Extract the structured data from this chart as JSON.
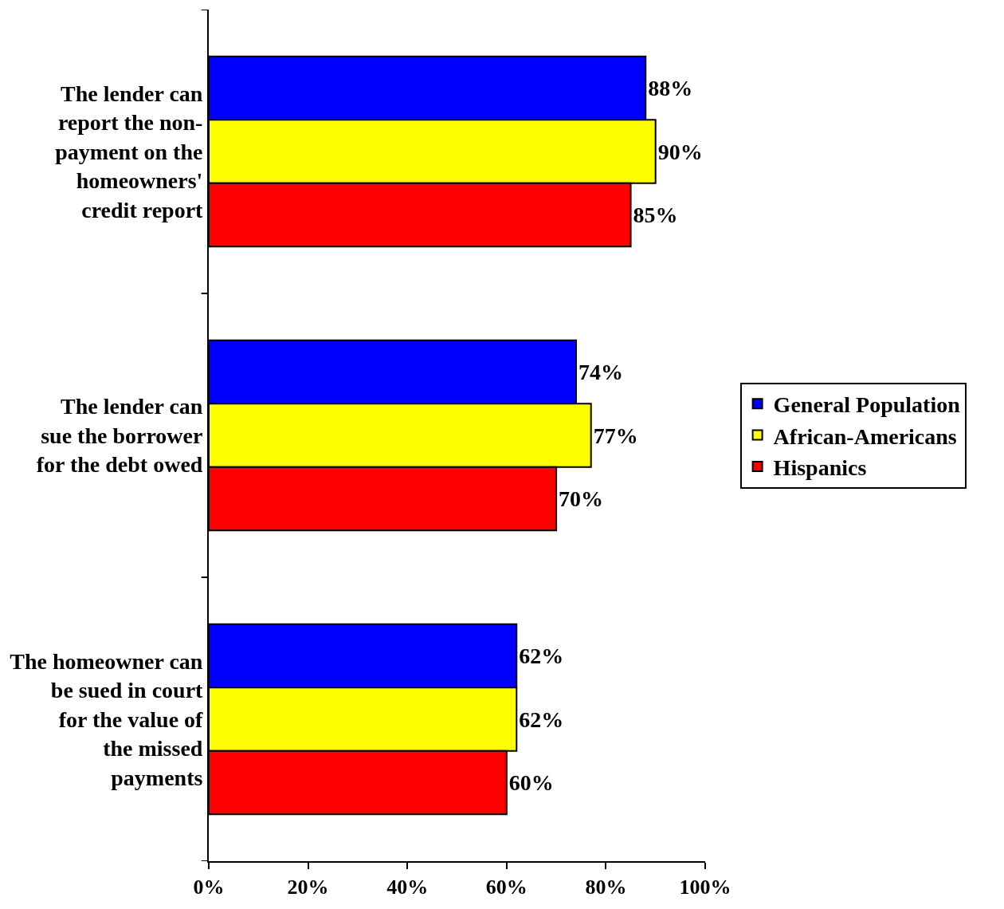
{
  "chart_data": {
    "type": "bar",
    "orientation": "horizontal",
    "categories": [
      "The lender can report the non-payment on the homeowners' credit report",
      "The lender can sue the borrower for the debt owed",
      "The homeowner can be sued in court for the value of the missed payments"
    ],
    "series": [
      {
        "name": "General Population",
        "color": "#0000ff",
        "values": [
          88,
          74,
          62
        ],
        "value_labels": [
          "88%",
          "74%",
          "62%"
        ]
      },
      {
        "name": "African-Americans",
        "color": "#ffff00",
        "values": [
          90,
          77,
          62
        ],
        "value_labels": [
          "90%",
          "77%",
          "62%"
        ]
      },
      {
        "name": "Hispanics",
        "color": "#ff0000",
        "values": [
          85,
          70,
          60
        ],
        "value_labels": [
          "85%",
          "70%",
          "60%"
        ]
      }
    ],
    "xlim": [
      0,
      100
    ],
    "xticks": [
      {
        "value": 0,
        "label": "0%"
      },
      {
        "value": 20,
        "label": "20%"
      },
      {
        "value": 40,
        "label": "40%"
      },
      {
        "value": 60,
        "label": "60%"
      },
      {
        "value": 80,
        "label": "80%"
      },
      {
        "value": 100,
        "label": "100%"
      }
    ],
    "legend": "right"
  }
}
